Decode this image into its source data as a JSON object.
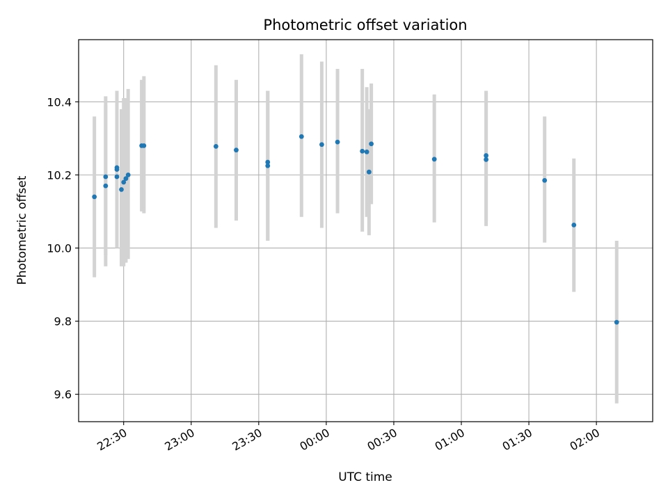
{
  "chart_data": {
    "type": "scatter",
    "title": "Photometric offset variation",
    "xlabel": "UTC time",
    "ylabel": "Photometric offset",
    "x_unit": "UTC time (HH:MM), night spanning midnight",
    "xlim": [
      "22:10",
      "02:25"
    ],
    "ylim": [
      9.525,
      10.57
    ],
    "x_ticks": [
      "22:30",
      "23:00",
      "23:30",
      "00:00",
      "00:30",
      "01:00",
      "01:30",
      "02:00"
    ],
    "y_ticks": [
      9.6,
      9.8,
      10.0,
      10.2,
      10.4
    ],
    "y_tick_labels": [
      "9.6",
      "9.8",
      "10.0",
      "10.2",
      "10.4"
    ],
    "grid": true,
    "point_color": "#1f77b4",
    "errorbar_color": "#d3d3d3",
    "points": [
      {
        "x": "22:17",
        "y": 10.14,
        "lo": 9.92,
        "hi": 10.36
      },
      {
        "x": "22:22",
        "y": 10.17,
        "lo": 9.95,
        "hi": 10.39
      },
      {
        "x": "22:22",
        "y": 10.195,
        "lo": 9.98,
        "hi": 10.415
      },
      {
        "x": "22:27",
        "y": 10.22,
        "lo": 10.01,
        "hi": 10.43
      },
      {
        "x": "22:27",
        "y": 10.215,
        "lo": 10.0,
        "hi": 10.43
      },
      {
        "x": "22:27",
        "y": 10.195,
        "lo": 10.0,
        "hi": 10.39
      },
      {
        "x": "22:29",
        "y": 10.16,
        "lo": 9.95,
        "hi": 10.38
      },
      {
        "x": "22:30",
        "y": 10.18,
        "lo": 9.95,
        "hi": 10.41
      },
      {
        "x": "22:31",
        "y": 10.19,
        "lo": 9.96,
        "hi": 10.41
      },
      {
        "x": "22:32",
        "y": 10.2,
        "lo": 9.97,
        "hi": 10.435
      },
      {
        "x": "22:38",
        "y": 10.28,
        "lo": 10.1,
        "hi": 10.46
      },
      {
        "x": "22:39",
        "y": 10.28,
        "lo": 10.095,
        "hi": 10.47
      },
      {
        "x": "23:11",
        "y": 10.278,
        "lo": 10.055,
        "hi": 10.5
      },
      {
        "x": "23:20",
        "y": 10.268,
        "lo": 10.075,
        "hi": 10.46
      },
      {
        "x": "23:34",
        "y": 10.235,
        "lo": 10.02,
        "hi": 10.43
      },
      {
        "x": "23:34",
        "y": 10.225,
        "lo": 10.02,
        "hi": 10.43
      },
      {
        "x": "23:49",
        "y": 10.305,
        "lo": 10.085,
        "hi": 10.53
      },
      {
        "x": "23:58",
        "y": 10.283,
        "lo": 10.055,
        "hi": 10.51
      },
      {
        "x": "00:05",
        "y": 10.29,
        "lo": 10.095,
        "hi": 10.49
      },
      {
        "x": "00:16",
        "y": 10.265,
        "lo": 10.045,
        "hi": 10.49
      },
      {
        "x": "00:18",
        "y": 10.263,
        "lo": 10.085,
        "hi": 10.44
      },
      {
        "x": "00:19",
        "y": 10.208,
        "lo": 10.035,
        "hi": 10.38
      },
      {
        "x": "00:20",
        "y": 10.285,
        "lo": 10.12,
        "hi": 10.45
      },
      {
        "x": "00:48",
        "y": 10.243,
        "lo": 10.07,
        "hi": 10.42
      },
      {
        "x": "01:11",
        "y": 10.253,
        "lo": 10.075,
        "hi": 10.43
      },
      {
        "x": "01:11",
        "y": 10.242,
        "lo": 10.06,
        "hi": 10.425
      },
      {
        "x": "01:37",
        "y": 10.185,
        "lo": 10.015,
        "hi": 10.36
      },
      {
        "x": "01:50",
        "y": 10.063,
        "lo": 9.88,
        "hi": 10.245
      },
      {
        "x": "02:09",
        "y": 9.797,
        "lo": 9.575,
        "hi": 10.02
      }
    ]
  }
}
